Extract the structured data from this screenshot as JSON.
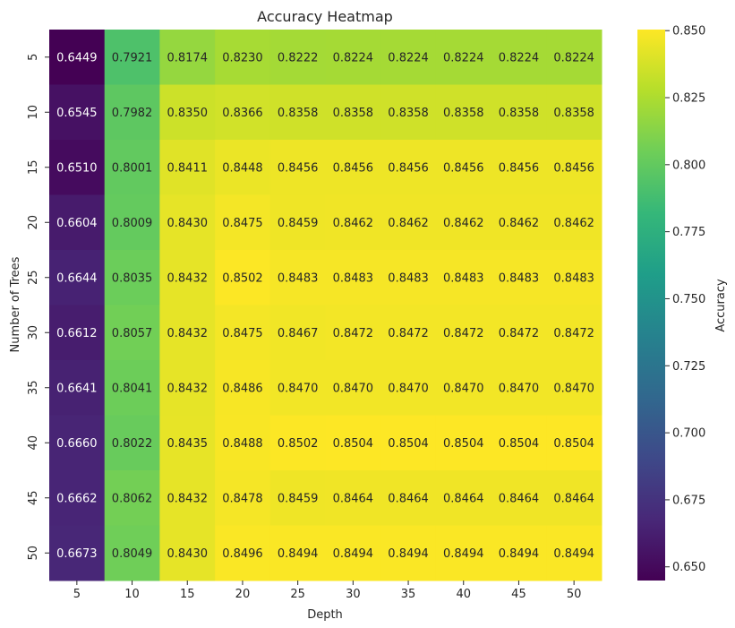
{
  "chart_data": {
    "type": "heatmap",
    "title": "Accuracy Heatmap",
    "xlabel": "Depth",
    "ylabel": "Number of Trees",
    "colorbar_label": "Accuracy",
    "colormap": "viridis",
    "x": [
      "5",
      "10",
      "15",
      "20",
      "25",
      "30",
      "35",
      "40",
      "45",
      "50"
    ],
    "y": [
      "5",
      "10",
      "15",
      "20",
      "25",
      "30",
      "35",
      "40",
      "45",
      "50"
    ],
    "values": [
      [
        0.6449,
        0.7921,
        0.8174,
        0.823,
        0.8222,
        0.8224,
        0.8224,
        0.8224,
        0.8224,
        0.8224
      ],
      [
        0.6545,
        0.7982,
        0.835,
        0.8366,
        0.8358,
        0.8358,
        0.8358,
        0.8358,
        0.8358,
        0.8358
      ],
      [
        0.651,
        0.8001,
        0.8411,
        0.8448,
        0.8456,
        0.8456,
        0.8456,
        0.8456,
        0.8456,
        0.8456
      ],
      [
        0.6604,
        0.8009,
        0.843,
        0.8475,
        0.8459,
        0.8462,
        0.8462,
        0.8462,
        0.8462,
        0.8462
      ],
      [
        0.6644,
        0.8035,
        0.8432,
        0.8502,
        0.8483,
        0.8483,
        0.8483,
        0.8483,
        0.8483,
        0.8483
      ],
      [
        0.6612,
        0.8057,
        0.8432,
        0.8475,
        0.8467,
        0.8472,
        0.8472,
        0.8472,
        0.8472,
        0.8472
      ],
      [
        0.6641,
        0.8041,
        0.8432,
        0.8486,
        0.847,
        0.847,
        0.847,
        0.847,
        0.847,
        0.847
      ],
      [
        0.666,
        0.8022,
        0.8435,
        0.8488,
        0.8502,
        0.8504,
        0.8504,
        0.8504,
        0.8504,
        0.8504
      ],
      [
        0.6662,
        0.8062,
        0.8432,
        0.8478,
        0.8459,
        0.8464,
        0.8464,
        0.8464,
        0.8464,
        0.8464
      ],
      [
        0.6673,
        0.8049,
        0.843,
        0.8496,
        0.8494,
        0.8494,
        0.8494,
        0.8494,
        0.8494,
        0.8494
      ]
    ],
    "vmin": 0.6449,
    "vmax": 0.8504,
    "colorbar_ticks": [
      "0.650",
      "0.675",
      "0.700",
      "0.725",
      "0.750",
      "0.775",
      "0.800",
      "0.825",
      "0.850"
    ],
    "grid": false
  }
}
